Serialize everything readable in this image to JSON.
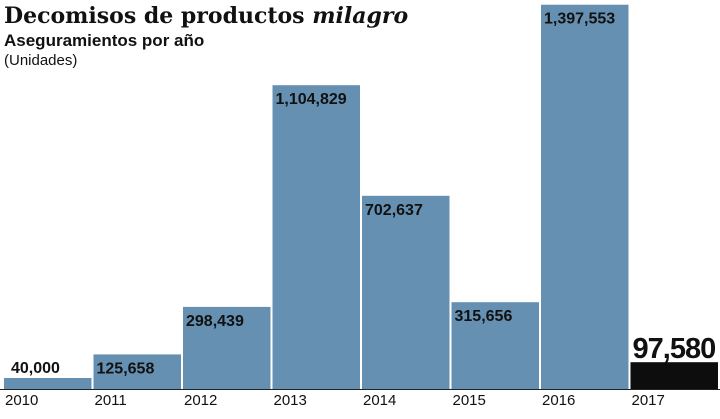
{
  "chart_data": {
    "type": "bar",
    "title_main": "Decomisos de productos",
    "title_emph": "milagro",
    "subtitle": "Aseguramientos por año",
    "unit_note": "(Unidades)",
    "xlabel": "",
    "ylabel": "",
    "ylim": [
      0,
      1400000
    ],
    "grid": false,
    "legend": "none",
    "categories": [
      "2010",
      "2011",
      "2012",
      "2013",
      "2014",
      "2015",
      "2016",
      "2017"
    ],
    "values": [
      40000,
      125658,
      298439,
      1104829,
      702637,
      315656,
      1397553,
      97580
    ],
    "value_labels": [
      "40,000",
      "125,658",
      "298,439",
      "1,104,829",
      "702,637",
      "315,656",
      "1,397,553",
      "97,580"
    ],
    "colors": {
      "bar": "#6590b1",
      "highlight": "#0d0d0d",
      "baseline": "#222222"
    },
    "highlight_category": "2017"
  }
}
